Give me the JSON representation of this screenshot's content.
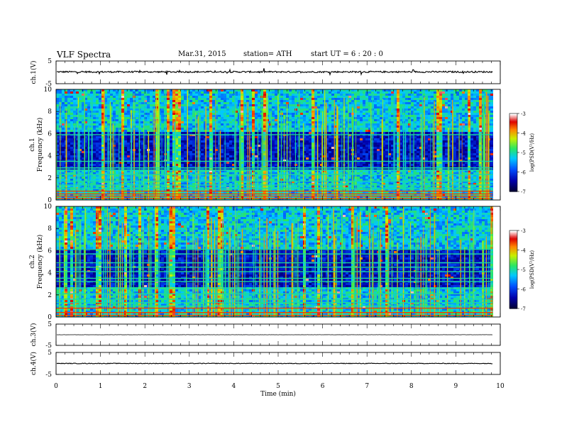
{
  "header": {
    "title": "VLF  Spectra",
    "date": "Mar.31, 2015",
    "station": "station= ATH",
    "start": "start  UT  =    6  : 20 : 0"
  },
  "chart_data": {
    "type": "heatmap",
    "title": "VLF  Spectra",
    "xlabel": "Time  (min)",
    "xlim": [
      0,
      10
    ],
    "xticks": [
      "0",
      "1",
      "2",
      "3",
      "4",
      "5",
      "6",
      "7",
      "8",
      "9",
      "10"
    ],
    "data_end_min": 9.83,
    "panels": [
      {
        "kind": "waveform",
        "ylabel": "ch.1(V)",
        "ylim": [
          -5,
          5
        ],
        "yticks": [
          "5",
          "-5"
        ],
        "mean": 0.2,
        "noise_amplitude": 0.35
      },
      {
        "kind": "spectrogram",
        "label": "ch.1",
        "ylabel": "Frequency  (kHz)",
        "ylim": [
          0,
          10
        ],
        "yticks": [
          "0",
          "2",
          "4",
          "6",
          "8",
          "10"
        ],
        "colorbar": {
          "label": "log(PSD(V²/Hz)",
          "range": [
            -7,
            -3
          ],
          "ticks": [
            "-3",
            "-4",
            "-5",
            "-6",
            "-7"
          ]
        },
        "bands_khz": [
          0.15,
          0.35,
          0.55,
          0.8,
          1.05,
          1.35,
          1.7,
          2.3,
          2.7,
          2.9,
          3.5,
          5.9
        ]
      },
      {
        "kind": "spectrogram",
        "label": "ch.2",
        "ylabel": "Frequency  (kHz)",
        "ylim": [
          0,
          10
        ],
        "yticks": [
          "0",
          "2",
          "4",
          "6",
          "8",
          "10"
        ],
        "colorbar": {
          "label": "log(PSD(V²/Hz)",
          "range": [
            -7,
            -3
          ],
          "ticks": [
            "-3",
            "-4",
            "-5",
            "-6",
            "-7"
          ]
        },
        "bands_khz": [
          0.15,
          0.4,
          0.8,
          1.0,
          1.3,
          1.6,
          2.1,
          2.6,
          3.2,
          3.5,
          4.1,
          4.5,
          4.9,
          5.7,
          6.1
        ]
      },
      {
        "kind": "waveform",
        "ylabel": "ch.3(V)",
        "ylim": [
          -5,
          5
        ],
        "yticks": [
          "5",
          "-5"
        ],
        "mean": 0.0,
        "noise_amplitude": 0.05
      },
      {
        "kind": "waveform",
        "ylabel": "ch.4(V)",
        "ylim": [
          -5,
          5
        ],
        "yticks": [
          "5",
          "-5"
        ],
        "mean": 0.0,
        "noise_amplitude": 0.15
      }
    ]
  }
}
